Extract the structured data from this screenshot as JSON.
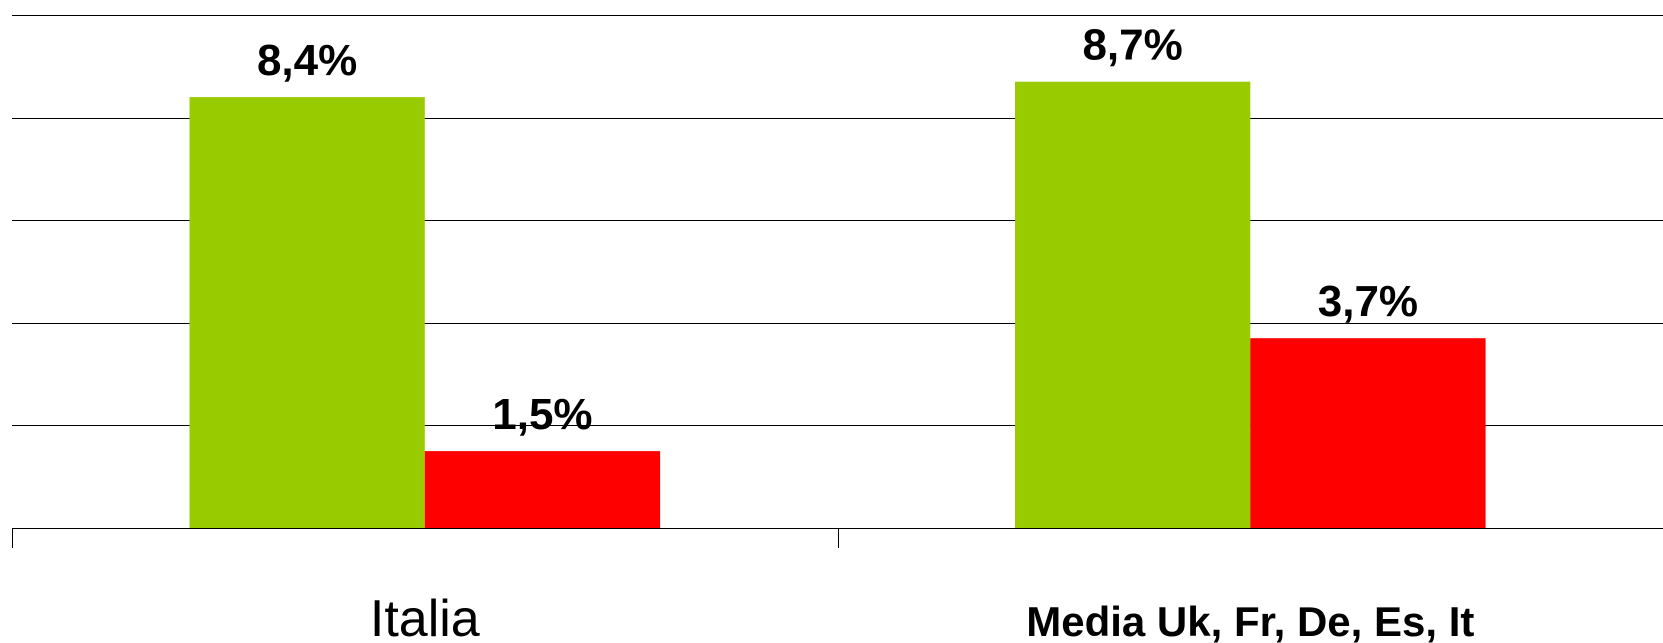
{
  "chart_data": {
    "type": "bar",
    "categories": [
      "Italia",
      "Media Uk, Fr, De, Es, It"
    ],
    "series": [
      {
        "values": [
          8.4,
          8.7
        ],
        "labels": [
          "8,4%",
          "8,7%"
        ],
        "color": "#99cc00"
      },
      {
        "values": [
          1.5,
          3.7
        ],
        "labels": [
          "1,5%",
          "3,7%"
        ],
        "color": "#ff0000"
      }
    ],
    "ylim": [
      0,
      10
    ],
    "grid": true,
    "legend": "none"
  }
}
